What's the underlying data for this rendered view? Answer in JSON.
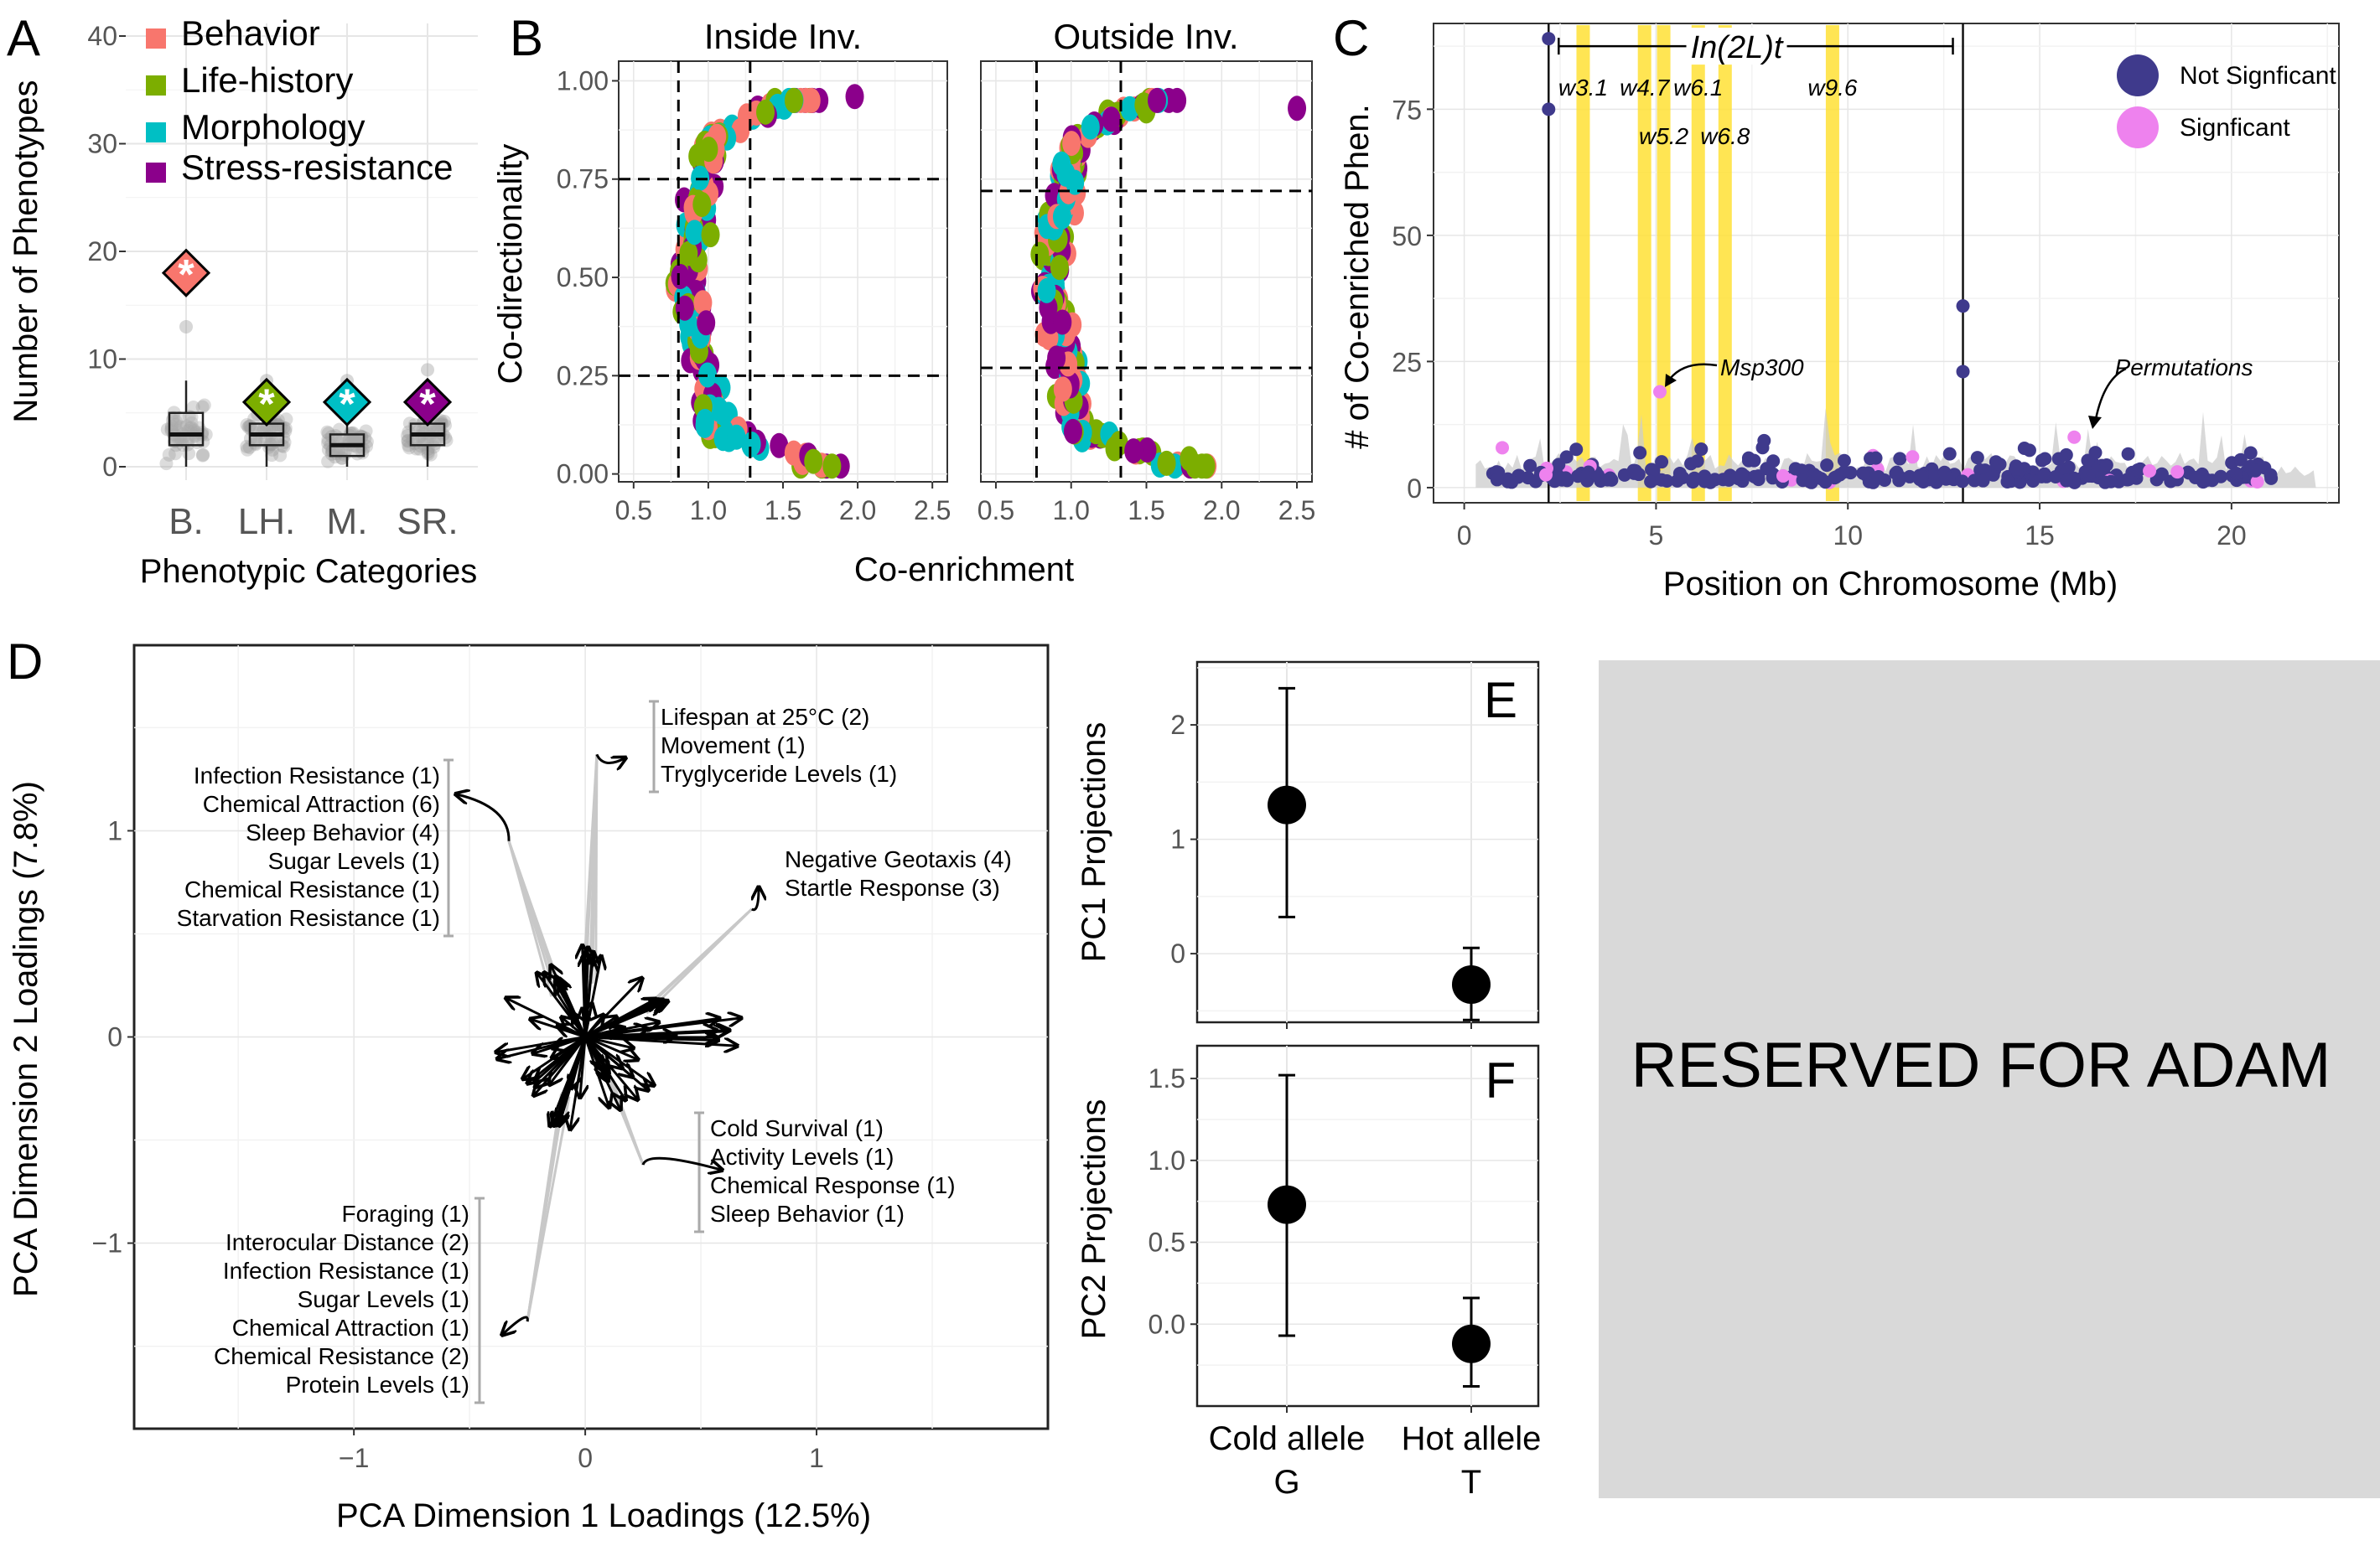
{
  "panels": {
    "A": {
      "letter": "A"
    },
    "B": {
      "letter": "B"
    },
    "C": {
      "letter": "C"
    },
    "D": {
      "letter": "D"
    },
    "E": {
      "letter": "E"
    },
    "F": {
      "letter": "F"
    }
  },
  "reserved_text": "RESERVED FOR ADAM",
  "colors": {
    "behavior": "#F8766D",
    "life_history": "#7CAE00",
    "morphology": "#00BFC4",
    "stress_resistance": "#8B008B",
    "not_significant": "#3F3A8C",
    "significant": "#EE82EE",
    "window": "#FFE135",
    "reserved_bg": "#D9D9D9"
  },
  "chart_data": [
    {
      "id": "A",
      "type": "box",
      "xlabel": "Phenotypic Categories",
      "ylabel": "Number of Phenotypes",
      "categories": [
        "B.",
        "LH.",
        "M.",
        "SR."
      ],
      "ylim": [
        0,
        40
      ],
      "yticks": [
        0,
        10,
        20,
        30,
        40
      ],
      "legend": [
        "Behavior",
        "Life-history",
        "Morphology",
        "Stress-resistance"
      ],
      "legend_position": "top-right",
      "observed": [
        18,
        6,
        6,
        6
      ],
      "observed_label": "*",
      "boxes": [
        {
          "q1": 2,
          "median": 3,
          "q3": 5,
          "lo": 0,
          "hi": 8
        },
        {
          "q1": 2,
          "median": 3,
          "q3": 4,
          "lo": 0,
          "hi": 6
        },
        {
          "q1": 1,
          "median": 2,
          "q3": 3,
          "lo": 0,
          "hi": 5
        },
        {
          "q1": 2,
          "median": 3,
          "q3": 4,
          "lo": 0,
          "hi": 7
        }
      ],
      "jitter_max": [
        13,
        8,
        8,
        9
      ]
    },
    {
      "id": "B",
      "type": "scatter",
      "xlabel": "Co-enrichment",
      "ylabel": "Co-directionality",
      "facets": [
        "Inside Inv.",
        "Outside Inv."
      ],
      "xlim": [
        0.4,
        2.6
      ],
      "ylim": [
        -0.02,
        1.05
      ],
      "xticks": [
        0.5,
        1.0,
        1.5,
        2.0,
        2.5
      ],
      "yticks": [
        0.0,
        0.25,
        0.5,
        0.75,
        1.0
      ],
      "xtick_labels": [
        "0.5",
        "1.0",
        "1.5",
        "2.0",
        "2.5"
      ],
      "ytick_labels": [
        "0.00",
        "0.25",
        "0.50",
        "0.75",
        "1.00"
      ],
      "thresholds": [
        {
          "vx": [
            0.8,
            1.28
          ],
          "hy": [
            0.25,
            0.75
          ]
        },
        {
          "vx": [
            0.77,
            1.33
          ],
          "hy": [
            0.27,
            0.72
          ]
        }
      ],
      "extremes": [
        {
          "x": 1.98,
          "y": 0.96,
          "series": "Stress-resistance"
        },
        {
          "x": 2.5,
          "y": 0.93,
          "series": "Stress-resistance"
        }
      ]
    },
    {
      "id": "C",
      "type": "scatter",
      "xlabel": "Position on Chromosome (Mb)",
      "ylabel": "# of Co-enriched Phen.",
      "xlim": [
        -0.8,
        22.8
      ],
      "ylim": [
        -3,
        92
      ],
      "xticks": [
        0,
        5,
        10,
        15,
        20
      ],
      "yticks": [
        0,
        25,
        50,
        75
      ],
      "legend": [
        "Not Signficant",
        "Signficant"
      ],
      "legend_position": "top-right",
      "inversion": {
        "label": "In(2L)t",
        "start": 2.2,
        "end": 13.0
      },
      "windows": [
        {
          "label": "w3.1",
          "pos": 3.1,
          "row": 1
        },
        {
          "label": "w4.7",
          "pos": 4.7,
          "row": 1
        },
        {
          "label": "w5.2",
          "pos": 5.2,
          "row": 2
        },
        {
          "label": "w6.1",
          "pos": 6.1,
          "row": 1
        },
        {
          "label": "w6.8",
          "pos": 6.8,
          "row": 2
        },
        {
          "label": "w9.6",
          "pos": 9.6,
          "row": 1
        }
      ],
      "annotations": [
        "Msp300",
        "Permutations"
      ],
      "highlights": [
        {
          "x": 2.2,
          "y": 89
        },
        {
          "x": 2.2,
          "y": 75
        },
        {
          "x": 13.0,
          "y": 36
        },
        {
          "x": 13.0,
          "y": 23
        },
        {
          "x": 5.1,
          "y": 19
        },
        {
          "x": 15.9,
          "y": 10
        }
      ]
    },
    {
      "id": "D",
      "type": "biplot",
      "xlabel": "PCA Dimension 1 Loadings (12.5%)",
      "ylabel": "PCA Dimension 2 Loadings (7.8%)",
      "xlim": [
        -1.95,
        2.0
      ],
      "ylim": [
        -1.9,
        1.9
      ],
      "xticks": [
        -1,
        0,
        1
      ],
      "yticks": [
        -1,
        0,
        1
      ],
      "clusters": [
        {
          "labels": [
            "Infection Resistance (1)",
            "Chemical Attraction (6)",
            "Sleep Behavior (4)",
            "Sugar Levels (1)",
            "Chemical Resistance (1)",
            "Starvation Resistance (1)"
          ],
          "tip": [
            -0.33,
            0.95
          ]
        },
        {
          "labels": [
            "Lifespan at 25°C (2)",
            "Movement (1)",
            "Tryglyceride Levels (1)"
          ],
          "tip": [
            0.05,
            1.37
          ]
        },
        {
          "labels": [
            "Negative Geotaxis (4)",
            "Startle Response (3)"
          ],
          "tip": [
            0.72,
            0.62
          ]
        },
        {
          "labels": [
            "Cold Survival (1)",
            "Activity Levels (1)",
            "Chemical Response (1)",
            "Sleep Behavior (1)"
          ],
          "tip": [
            0.25,
            -0.62
          ]
        },
        {
          "labels": [
            "Foraging (1)",
            "Interocular Distance (2)",
            "Infection Resistance (1)",
            "Sugar Levels (1)",
            "Chemical Attraction (1)",
            "Chemical Resistance (2)",
            "Protein Levels (1)"
          ],
          "tip": [
            -0.25,
            -1.38
          ]
        }
      ]
    },
    {
      "id": "E",
      "type": "pointrange",
      "ylabel": "PC1 Projections",
      "categories": [
        "Cold allele",
        "Hot allele"
      ],
      "ylim": [
        -0.6,
        2.55
      ],
      "yticks": [
        0,
        1,
        2
      ],
      "points": [
        {
          "y": 1.3,
          "lo": 0.32,
          "hi": 2.32
        },
        {
          "y": -0.27,
          "lo": -0.58,
          "hi": 0.05
        }
      ]
    },
    {
      "id": "F",
      "type": "pointrange",
      "ylabel": "PC2 Projections",
      "categories": [
        "Cold allele",
        "Hot allele"
      ],
      "category_sub": [
        "G",
        "T"
      ],
      "ylim": [
        -0.5,
        1.7
      ],
      "yticks": [
        0.0,
        0.5,
        1.0,
        1.5
      ],
      "ytick_labels": [
        "0.0",
        "0.5",
        "1.0",
        "1.5"
      ],
      "points": [
        {
          "y": 0.73,
          "lo": -0.07,
          "hi": 1.52
        },
        {
          "y": -0.12,
          "lo": -0.38,
          "hi": 0.16
        }
      ]
    }
  ]
}
